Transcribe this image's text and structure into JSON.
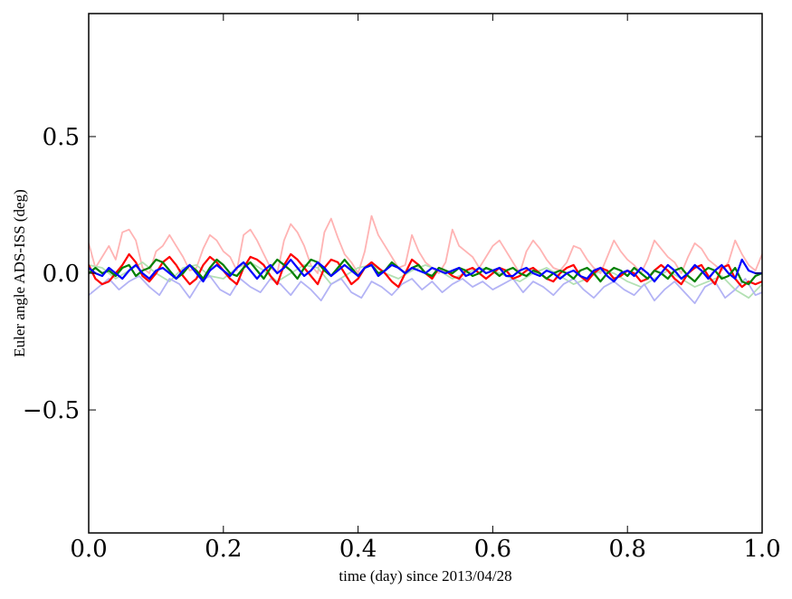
{
  "chart_data": {
    "type": "line",
    "title": "",
    "xlabel": "time (day) since 2013/04/28",
    "ylabel": "Euler angle ADS-ISS (deg)",
    "xlim": [
      0.0,
      1.0
    ],
    "ylim": [
      -0.95,
      0.95
    ],
    "xticks": [
      0.0,
      0.2,
      0.4,
      0.6,
      0.8,
      1.0
    ],
    "xtick_labels": [
      "0.0",
      "0.2",
      "0.4",
      "0.6",
      "0.8",
      "1.0"
    ],
    "yticks": [
      -0.5,
      0.0,
      0.5
    ],
    "ytick_labels": [
      "−0.5",
      "0.0",
      "0.5"
    ],
    "grid": false,
    "legend": "none",
    "series": [
      {
        "color": "#ffb3b3",
        "x": [
          0.0,
          0.01,
          0.02,
          0.03,
          0.04,
          0.05,
          0.06,
          0.07,
          0.08,
          0.09,
          0.1,
          0.11,
          0.12,
          0.13,
          0.14,
          0.15,
          0.16,
          0.17,
          0.18,
          0.19,
          0.2,
          0.21,
          0.22,
          0.23,
          0.24,
          0.25,
          0.26,
          0.27,
          0.28,
          0.29,
          0.3,
          0.31,
          0.32,
          0.33,
          0.34,
          0.35,
          0.36,
          0.37,
          0.38,
          0.39,
          0.4,
          0.41,
          0.42,
          0.43,
          0.44,
          0.45,
          0.46,
          0.47,
          0.48,
          0.49,
          0.5,
          0.51,
          0.52,
          0.53,
          0.54,
          0.55,
          0.56,
          0.57,
          0.58,
          0.59,
          0.6,
          0.61,
          0.62,
          0.63,
          0.64,
          0.65,
          0.66,
          0.67,
          0.68,
          0.69,
          0.7,
          0.71,
          0.72,
          0.73,
          0.74,
          0.75,
          0.76,
          0.77,
          0.78,
          0.79,
          0.8,
          0.81,
          0.82,
          0.83,
          0.84,
          0.85,
          0.86,
          0.87,
          0.88,
          0.89,
          0.9,
          0.91,
          0.92,
          0.93,
          0.94,
          0.95,
          0.96,
          0.97,
          0.98,
          0.99,
          1.0
        ],
        "y": [
          0.11,
          0.02,
          0.06,
          0.1,
          0.05,
          0.15,
          0.16,
          0.12,
          0.02,
          0.0,
          0.08,
          0.1,
          0.14,
          0.1,
          0.06,
          0.01,
          0.02,
          0.09,
          0.14,
          0.12,
          0.08,
          0.06,
          0.01,
          0.14,
          0.16,
          0.12,
          0.07,
          0.02,
          0.0,
          0.12,
          0.18,
          0.15,
          0.1,
          0.03,
          0.0,
          0.15,
          0.2,
          0.13,
          0.07,
          0.04,
          0.0,
          0.08,
          0.21,
          0.14,
          0.1,
          0.06,
          0.02,
          0.03,
          0.14,
          0.08,
          0.04,
          0.02,
          0.0,
          0.04,
          0.16,
          0.1,
          0.08,
          0.06,
          0.02,
          0.06,
          0.1,
          0.12,
          0.08,
          0.04,
          0.0,
          0.08,
          0.12,
          0.09,
          0.05,
          0.02,
          0.01,
          0.04,
          0.1,
          0.09,
          0.05,
          0.02,
          0.0,
          0.06,
          0.12,
          0.08,
          0.05,
          0.03,
          0.0,
          0.05,
          0.12,
          0.09,
          0.06,
          0.04,
          0.0,
          0.06,
          0.11,
          0.09,
          0.05,
          0.03,
          0.01,
          0.04,
          0.12,
          0.07,
          0.03,
          0.01,
          0.07
        ]
      },
      {
        "color": "#b3e0b3",
        "x": [
          0.0,
          0.02,
          0.04,
          0.06,
          0.08,
          0.1,
          0.12,
          0.14,
          0.16,
          0.18,
          0.2,
          0.22,
          0.24,
          0.26,
          0.28,
          0.3,
          0.32,
          0.34,
          0.36,
          0.38,
          0.4,
          0.42,
          0.44,
          0.46,
          0.48,
          0.5,
          0.52,
          0.54,
          0.56,
          0.58,
          0.6,
          0.62,
          0.64,
          0.66,
          0.68,
          0.7,
          0.72,
          0.74,
          0.76,
          0.78,
          0.8,
          0.82,
          0.84,
          0.86,
          0.88,
          0.9,
          0.92,
          0.94,
          0.96,
          0.98,
          1.0
        ],
        "y": [
          0.03,
          0.02,
          -0.02,
          0.01,
          0.04,
          0.0,
          -0.03,
          0.02,
          0.03,
          -0.01,
          -0.02,
          0.02,
          0.04,
          0.01,
          -0.03,
          0.0,
          0.03,
          0.02,
          -0.04,
          -0.01,
          0.02,
          0.03,
          0.0,
          -0.02,
          0.01,
          0.03,
          0.01,
          -0.02,
          0.0,
          0.02,
          0.01,
          -0.01,
          -0.03,
          0.0,
          0.02,
          -0.01,
          -0.04,
          -0.02,
          0.01,
          0.0,
          -0.03,
          -0.05,
          -0.02,
          0.01,
          -0.02,
          -0.05,
          -0.03,
          -0.01,
          -0.06,
          -0.09,
          -0.04
        ]
      },
      {
        "color": "#b3b3f5",
        "x": [
          0.0,
          0.015,
          0.03,
          0.045,
          0.06,
          0.075,
          0.09,
          0.105,
          0.12,
          0.135,
          0.15,
          0.165,
          0.18,
          0.195,
          0.21,
          0.225,
          0.24,
          0.255,
          0.27,
          0.285,
          0.3,
          0.315,
          0.33,
          0.345,
          0.36,
          0.375,
          0.39,
          0.405,
          0.42,
          0.435,
          0.45,
          0.465,
          0.48,
          0.495,
          0.51,
          0.525,
          0.54,
          0.555,
          0.57,
          0.585,
          0.6,
          0.615,
          0.63,
          0.645,
          0.66,
          0.675,
          0.69,
          0.705,
          0.72,
          0.735,
          0.75,
          0.765,
          0.78,
          0.795,
          0.81,
          0.825,
          0.84,
          0.855,
          0.87,
          0.885,
          0.9,
          0.915,
          0.93,
          0.945,
          0.96,
          0.975,
          0.99,
          1.0
        ],
        "y": [
          -0.08,
          -0.05,
          -0.02,
          -0.06,
          -0.03,
          -0.01,
          -0.05,
          -0.08,
          -0.02,
          -0.04,
          -0.09,
          -0.03,
          -0.01,
          -0.06,
          -0.08,
          -0.02,
          -0.05,
          -0.07,
          -0.02,
          -0.04,
          -0.08,
          -0.03,
          -0.06,
          -0.1,
          -0.04,
          -0.02,
          -0.07,
          -0.09,
          -0.03,
          -0.05,
          -0.08,
          -0.04,
          -0.02,
          -0.06,
          -0.03,
          -0.07,
          -0.04,
          -0.02,
          -0.05,
          -0.03,
          -0.06,
          -0.04,
          -0.02,
          -0.07,
          -0.03,
          -0.05,
          -0.08,
          -0.04,
          -0.02,
          -0.06,
          -0.09,
          -0.05,
          -0.03,
          -0.06,
          -0.08,
          -0.04,
          -0.1,
          -0.06,
          -0.03,
          -0.07,
          -0.11,
          -0.05,
          -0.03,
          -0.09,
          -0.06,
          -0.02,
          -0.08,
          -0.07
        ]
      },
      {
        "color": "#ff0000",
        "x": [
          0.0,
          0.01,
          0.02,
          0.03,
          0.04,
          0.05,
          0.06,
          0.07,
          0.08,
          0.09,
          0.1,
          0.11,
          0.12,
          0.13,
          0.14,
          0.15,
          0.16,
          0.17,
          0.18,
          0.19,
          0.2,
          0.21,
          0.22,
          0.23,
          0.24,
          0.25,
          0.26,
          0.27,
          0.28,
          0.29,
          0.3,
          0.31,
          0.32,
          0.33,
          0.34,
          0.35,
          0.36,
          0.37,
          0.38,
          0.39,
          0.4,
          0.41,
          0.42,
          0.43,
          0.44,
          0.45,
          0.46,
          0.47,
          0.48,
          0.49,
          0.5,
          0.51,
          0.52,
          0.53,
          0.54,
          0.55,
          0.56,
          0.57,
          0.58,
          0.59,
          0.6,
          0.61,
          0.62,
          0.63,
          0.64,
          0.65,
          0.66,
          0.67,
          0.68,
          0.69,
          0.7,
          0.71,
          0.72,
          0.73,
          0.74,
          0.75,
          0.76,
          0.77,
          0.78,
          0.79,
          0.8,
          0.81,
          0.82,
          0.83,
          0.84,
          0.85,
          0.86,
          0.87,
          0.88,
          0.89,
          0.9,
          0.91,
          0.92,
          0.93,
          0.94,
          0.95,
          0.96,
          0.97,
          0.98,
          0.99,
          1.0
        ],
        "y": [
          0.03,
          -0.02,
          -0.04,
          -0.03,
          0.0,
          0.03,
          0.07,
          0.04,
          -0.01,
          -0.03,
          0.0,
          0.04,
          0.06,
          0.03,
          -0.01,
          -0.04,
          -0.02,
          0.03,
          0.06,
          0.04,
          0.01,
          -0.02,
          -0.04,
          0.02,
          0.06,
          0.05,
          0.03,
          -0.01,
          -0.04,
          0.03,
          0.07,
          0.05,
          0.02,
          -0.01,
          -0.04,
          0.02,
          0.05,
          0.04,
          0.0,
          -0.04,
          -0.02,
          0.02,
          0.04,
          0.02,
          0.0,
          -0.03,
          -0.05,
          0.0,
          0.05,
          0.03,
          0.0,
          -0.02,
          0.02,
          0.01,
          -0.01,
          -0.02,
          0.01,
          0.02,
          0.0,
          -0.02,
          0.0,
          0.02,
          0.01,
          -0.02,
          -0.01,
          0.01,
          0.02,
          0.0,
          -0.02,
          -0.03,
          0.0,
          0.02,
          0.03,
          -0.01,
          -0.03,
          0.0,
          0.02,
          0.01,
          -0.02,
          -0.01,
          0.01,
          0.0,
          -0.03,
          -0.02,
          0.01,
          0.03,
          0.01,
          -0.02,
          -0.04,
          0.0,
          0.02,
          0.03,
          -0.01,
          -0.04,
          0.02,
          0.03,
          -0.02,
          -0.05,
          -0.03,
          -0.04,
          -0.03
        ]
      },
      {
        "color": "#008000",
        "x": [
          0.0,
          0.01,
          0.02,
          0.03,
          0.04,
          0.05,
          0.06,
          0.07,
          0.08,
          0.09,
          0.1,
          0.11,
          0.12,
          0.13,
          0.14,
          0.15,
          0.16,
          0.17,
          0.18,
          0.19,
          0.2,
          0.21,
          0.22,
          0.23,
          0.24,
          0.25,
          0.26,
          0.27,
          0.28,
          0.29,
          0.3,
          0.31,
          0.32,
          0.33,
          0.34,
          0.35,
          0.36,
          0.37,
          0.38,
          0.39,
          0.4,
          0.41,
          0.42,
          0.43,
          0.44,
          0.45,
          0.46,
          0.47,
          0.48,
          0.49,
          0.5,
          0.51,
          0.52,
          0.53,
          0.54,
          0.55,
          0.56,
          0.57,
          0.58,
          0.59,
          0.6,
          0.61,
          0.62,
          0.63,
          0.64,
          0.65,
          0.66,
          0.67,
          0.68,
          0.69,
          0.7,
          0.71,
          0.72,
          0.73,
          0.74,
          0.75,
          0.76,
          0.77,
          0.78,
          0.79,
          0.8,
          0.81,
          0.82,
          0.83,
          0.84,
          0.85,
          0.86,
          0.87,
          0.88,
          0.89,
          0.9,
          0.91,
          0.92,
          0.93,
          0.94,
          0.95,
          0.96,
          0.97,
          0.98,
          0.99,
          1.0
        ],
        "y": [
          0.0,
          0.02,
          0.0,
          0.01,
          -0.01,
          0.02,
          0.03,
          -0.01,
          0.01,
          0.02,
          0.05,
          0.04,
          0.01,
          -0.02,
          0.0,
          0.03,
          0.01,
          -0.02,
          0.02,
          0.05,
          0.03,
          0.0,
          -0.01,
          0.02,
          0.04,
          0.01,
          -0.02,
          0.02,
          0.05,
          0.03,
          0.01,
          -0.02,
          0.02,
          0.05,
          0.04,
          0.01,
          -0.01,
          0.02,
          0.05,
          0.02,
          -0.01,
          0.02,
          0.03,
          0.0,
          0.01,
          0.04,
          0.02,
          0.0,
          0.02,
          0.03,
          0.0,
          -0.01,
          0.02,
          0.01,
          0.0,
          0.02,
          0.01,
          -0.01,
          0.0,
          0.02,
          0.01,
          -0.01,
          0.01,
          0.02,
          0.0,
          -0.01,
          0.01,
          0.0,
          -0.02,
          0.0,
          0.01,
          0.0,
          -0.02,
          0.01,
          0.02,
          0.0,
          -0.03,
          0.0,
          0.02,
          0.01,
          -0.01,
          0.02,
          0.0,
          -0.02,
          0.01,
          0.0,
          -0.02,
          0.01,
          0.02,
          -0.01,
          -0.03,
          0.0,
          0.02,
          0.01,
          -0.02,
          -0.01,
          0.02,
          -0.03,
          -0.04,
          -0.01,
          0.0
        ]
      },
      {
        "color": "#0000ff",
        "x": [
          0.0,
          0.01,
          0.02,
          0.03,
          0.04,
          0.05,
          0.06,
          0.07,
          0.08,
          0.09,
          0.1,
          0.11,
          0.12,
          0.13,
          0.14,
          0.15,
          0.16,
          0.17,
          0.18,
          0.19,
          0.2,
          0.21,
          0.22,
          0.23,
          0.24,
          0.25,
          0.26,
          0.27,
          0.28,
          0.29,
          0.3,
          0.31,
          0.32,
          0.33,
          0.34,
          0.35,
          0.36,
          0.37,
          0.38,
          0.39,
          0.4,
          0.41,
          0.42,
          0.43,
          0.44,
          0.45,
          0.46,
          0.47,
          0.48,
          0.49,
          0.5,
          0.51,
          0.52,
          0.53,
          0.54,
          0.55,
          0.56,
          0.57,
          0.58,
          0.59,
          0.6,
          0.61,
          0.62,
          0.63,
          0.64,
          0.65,
          0.66,
          0.67,
          0.68,
          0.69,
          0.7,
          0.71,
          0.72,
          0.73,
          0.74,
          0.75,
          0.76,
          0.77,
          0.78,
          0.79,
          0.8,
          0.81,
          0.82,
          0.83,
          0.84,
          0.85,
          0.86,
          0.87,
          0.88,
          0.89,
          0.9,
          0.91,
          0.92,
          0.93,
          0.94,
          0.95,
          0.96,
          0.97,
          0.98,
          0.99,
          1.0
        ],
        "y": [
          0.02,
          0.0,
          -0.01,
          0.02,
          0.0,
          -0.02,
          0.01,
          0.03,
          0.0,
          -0.02,
          0.01,
          0.02,
          0.0,
          -0.02,
          0.01,
          0.03,
          0.0,
          -0.03,
          0.01,
          0.03,
          0.01,
          -0.01,
          0.02,
          0.04,
          0.01,
          -0.02,
          0.01,
          0.03,
          0.0,
          0.02,
          0.05,
          0.02,
          -0.01,
          0.01,
          0.04,
          0.02,
          -0.01,
          0.01,
          0.03,
          0.01,
          -0.01,
          0.02,
          0.03,
          -0.01,
          0.01,
          0.03,
          0.02,
          0.0,
          0.02,
          0.01,
          0.0,
          0.02,
          0.01,
          0.0,
          0.01,
          0.02,
          -0.01,
          0.0,
          0.02,
          0.0,
          0.01,
          0.02,
          -0.01,
          -0.01,
          0.01,
          0.02,
          0.0,
          -0.01,
          0.01,
          0.0,
          -0.02,
          0.0,
          0.01,
          -0.01,
          -0.02,
          0.01,
          0.02,
          -0.01,
          -0.03,
          0.0,
          0.01,
          -0.01,
          0.02,
          0.0,
          -0.03,
          0.0,
          0.03,
          0.01,
          -0.02,
          0.0,
          0.03,
          0.01,
          -0.02,
          0.01,
          0.03,
          0.0,
          -0.02,
          0.05,
          0.01,
          0.0,
          0.0
        ]
      }
    ]
  }
}
